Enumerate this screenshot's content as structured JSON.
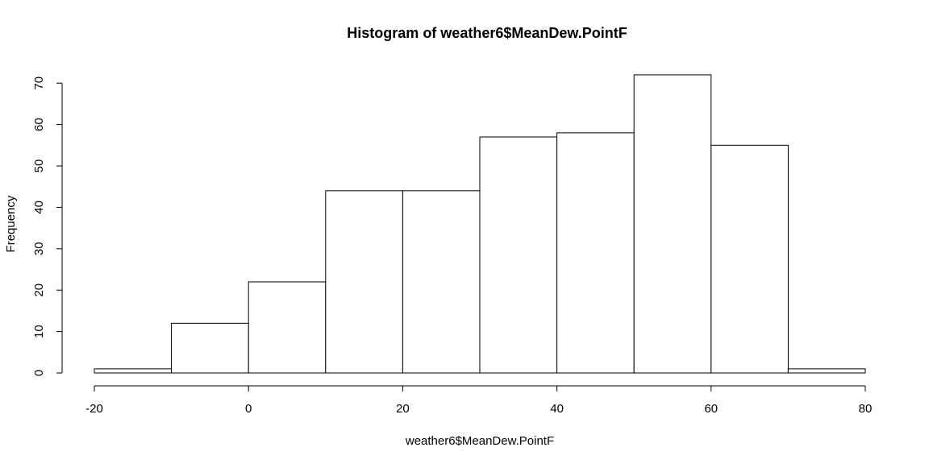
{
  "chart_data": {
    "type": "bar",
    "title": "Histogram of weather6$MeanDew.PointF",
    "xlabel": "weather6$MeanDew.PointF",
    "ylabel": "Frequency",
    "bins": [
      {
        "start": -20,
        "end": -10,
        "count": 1
      },
      {
        "start": -10,
        "end": 0,
        "count": 12
      },
      {
        "start": 0,
        "end": 10,
        "count": 22
      },
      {
        "start": 10,
        "end": 20,
        "count": 44
      },
      {
        "start": 20,
        "end": 30,
        "count": 44
      },
      {
        "start": 30,
        "end": 40,
        "count": 57
      },
      {
        "start": 40,
        "end": 50,
        "count": 58
      },
      {
        "start": 50,
        "end": 60,
        "count": 72
      },
      {
        "start": 60,
        "end": 70,
        "count": 55
      },
      {
        "start": 70,
        "end": 80,
        "count": 1
      }
    ],
    "xlim": [
      -20,
      80
    ],
    "ylim": [
      0,
      72
    ],
    "x_ticks": [
      -20,
      0,
      20,
      40,
      60,
      80
    ],
    "y_ticks": [
      0,
      10,
      20,
      30,
      40,
      50,
      60,
      70
    ],
    "grid": false,
    "legend": "none"
  }
}
